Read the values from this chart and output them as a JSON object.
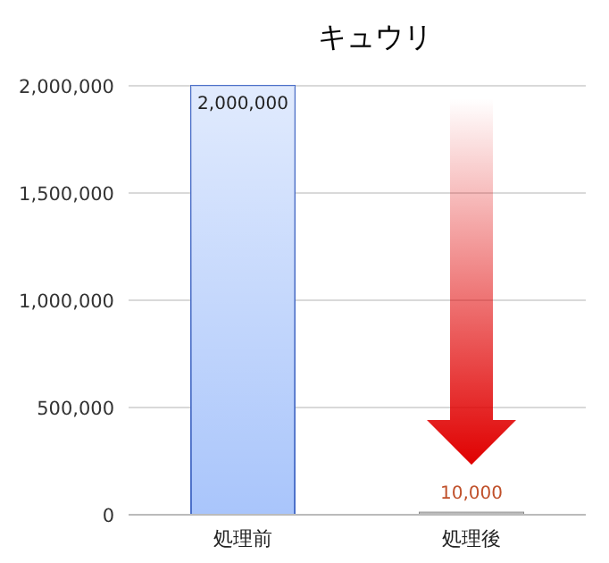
{
  "chart_data": {
    "type": "bar",
    "title": "キュウリ",
    "categories": [
      "処理前",
      "処理後"
    ],
    "values": [
      2000000,
      10000
    ],
    "colors": [
      "#a9c5fb",
      "#8c8c8c"
    ],
    "ylim": [
      0,
      2000000
    ],
    "yticks": [
      {
        "value": 0,
        "label": "0"
      },
      {
        "value": 500000,
        "label": "500,000"
      },
      {
        "value": 1000000,
        "label": "1,000,000"
      },
      {
        "value": 1500000,
        "label": "1,500,000"
      },
      {
        "value": 2000000,
        "label": "2,000,000"
      }
    ],
    "value_labels": [
      "2,000,000",
      "10,000"
    ],
    "grid": "y"
  }
}
